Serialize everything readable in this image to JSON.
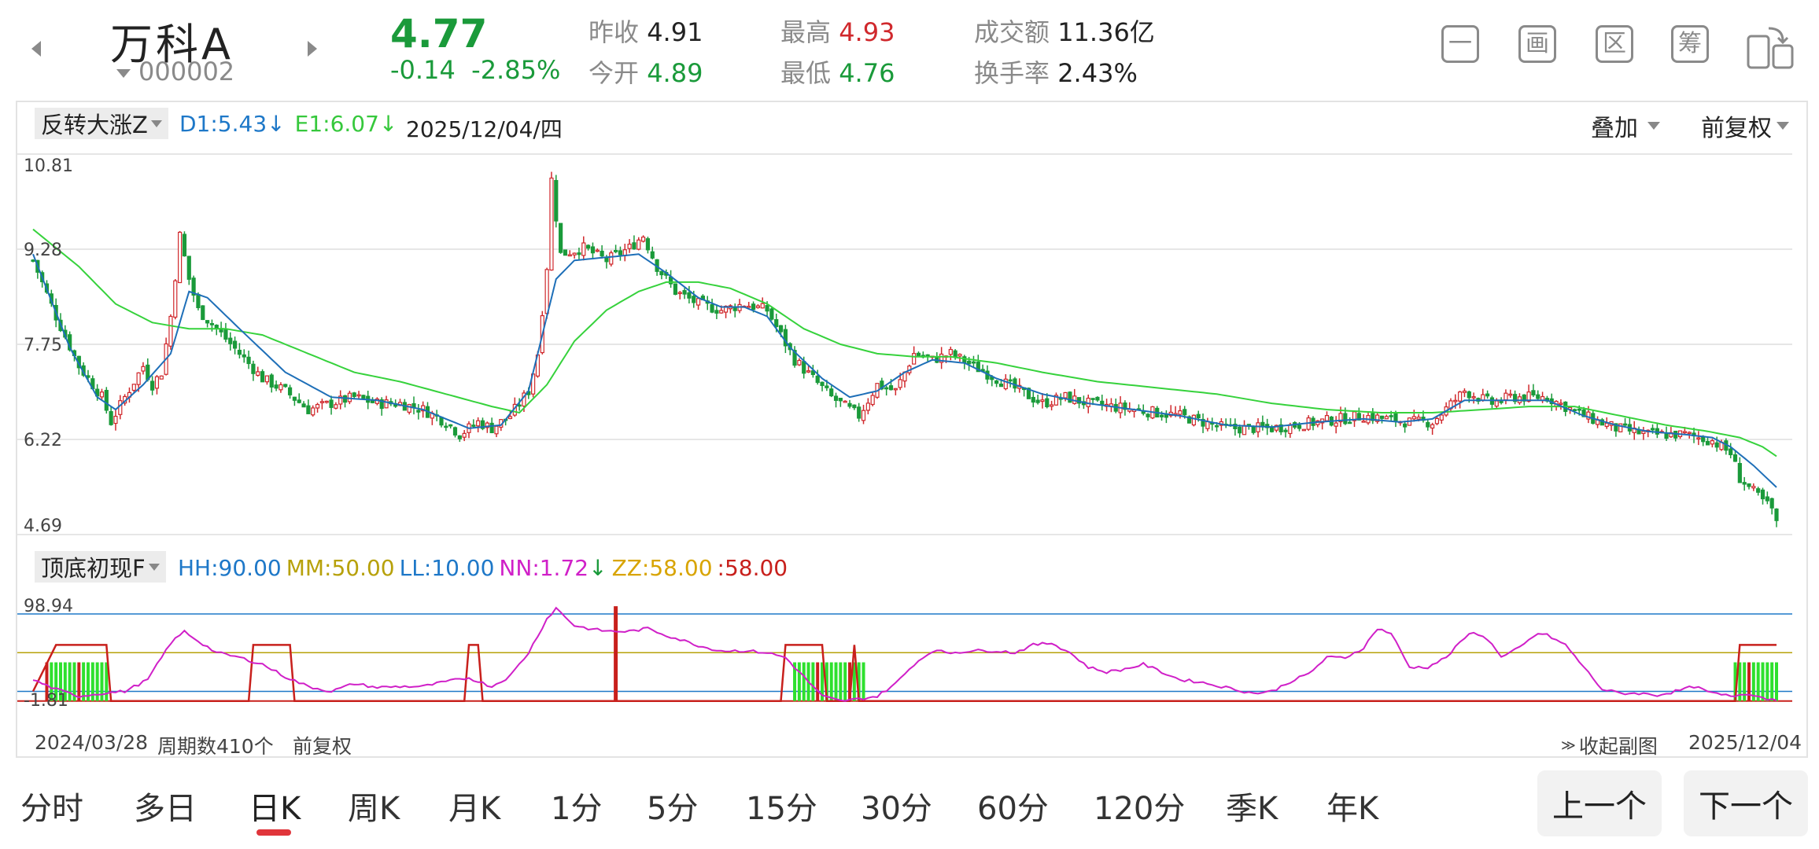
{
  "header": {
    "name": "万科A",
    "code": "000002",
    "price": "4.77",
    "change": "-0.14",
    "change_pct": "-2.85%",
    "stats": [
      {
        "label": "昨收",
        "value": "4.91",
        "color": "dark"
      },
      {
        "label": "今开",
        "value": "4.89",
        "color": "green"
      },
      {
        "label": "最高",
        "value": "4.93",
        "color": "red"
      },
      {
        "label": "最低",
        "value": "4.76",
        "color": "green"
      },
      {
        "label": "成交额",
        "value": "11.36亿",
        "color": "dark"
      },
      {
        "label": "换手率",
        "value": "2.43%",
        "color": "dark"
      }
    ],
    "buttons": [
      {
        "name": "minimize-icon",
        "glyph": "一"
      },
      {
        "name": "draw-icon",
        "glyph": "画"
      },
      {
        "name": "range-icon",
        "glyph": "区"
      },
      {
        "name": "chips-icon",
        "glyph": "筹"
      },
      {
        "name": "rotate-screen-icon",
        "glyph": ""
      }
    ]
  },
  "main_chart": {
    "indicator_name": "反转大涨Z",
    "d1_label": "D1:5.43",
    "e1_label": "E1:6.07",
    "date": "2025/12/04/四",
    "overlay": "叠加",
    "adjust": "前复权",
    "y_ticks": [
      "10.81",
      "9.28",
      "7.75",
      "6.22",
      "4.69"
    ]
  },
  "sub_chart": {
    "indicator_name": "顶底初现F",
    "values": [
      {
        "text": "HH:90.00",
        "color": "#1e78c8"
      },
      {
        "text": "MM:50.00",
        "color": "#b7a10a"
      },
      {
        "text": "LL:10.00",
        "color": "#1e78c8"
      },
      {
        "text": "NN:1.72",
        "color": "#d020c8"
      },
      {
        "text": "ZZ:58.00",
        "color": "#d8a400"
      },
      {
        "text": ":58.00",
        "color": "#c8201c"
      }
    ],
    "y_ticks": [
      "98.94",
      "-1.81"
    ]
  },
  "bottom": {
    "start_date": "2024/03/28",
    "period_count": "周期数410个",
    "adjust": "前复权",
    "collapse": "收起副图",
    "end_date": "2025/12/04"
  },
  "tabs": [
    "分时",
    "多日",
    "日K",
    "周K",
    "月K",
    "1分",
    "5分",
    "15分",
    "30分",
    "60分",
    "120分",
    "季K",
    "年K"
  ],
  "active_tab": "日K",
  "nav_buttons": {
    "prev": "上一个",
    "next": "下一个"
  },
  "colors": {
    "up": "#d0282c",
    "down": "#1a9a3a",
    "ma_fast": "#1e6fb8",
    "ma_slow": "#36d23c",
    "osc": "#d020c8",
    "signal": "#c8201c",
    "volume_green": "#2ee02e"
  },
  "chart_data": [
    {
      "type": "candlestick",
      "title": "",
      "ylim": [
        4.69,
        10.81
      ],
      "x_range": [
        "2024/03/28",
        "2025/12/04"
      ],
      "period_count": 410,
      "series": [
        {
          "name": "D1",
          "last": 5.43
        },
        {
          "name": "E1",
          "last": 6.07
        }
      ],
      "close_path": [
        [
          0,
          9.1
        ],
        [
          5,
          8.2
        ],
        [
          10,
          7.4
        ],
        [
          15,
          6.9
        ],
        [
          17,
          6.5
        ],
        [
          20,
          6.9
        ],
        [
          24,
          7.4
        ],
        [
          26,
          7.1
        ],
        [
          28,
          7.3
        ],
        [
          30,
          8.2
        ],
        [
          32,
          9.5
        ],
        [
          34,
          8.8
        ],
        [
          36,
          8.3
        ],
        [
          40,
          8.0
        ],
        [
          45,
          7.6
        ],
        [
          50,
          7.2
        ],
        [
          55,
          7.0
        ],
        [
          60,
          6.7
        ],
        [
          65,
          6.8
        ],
        [
          70,
          6.9
        ],
        [
          75,
          6.8
        ],
        [
          80,
          6.8
        ],
        [
          85,
          6.7
        ],
        [
          90,
          6.5
        ],
        [
          93,
          6.3
        ],
        [
          97,
          6.5
        ],
        [
          100,
          6.4
        ],
        [
          104,
          6.6
        ],
        [
          108,
          7.0
        ],
        [
          110,
          7.6
        ],
        [
          112,
          9.0
        ],
        [
          113,
          10.4
        ],
        [
          115,
          9.2
        ],
        [
          120,
          9.3
        ],
        [
          125,
          9.1
        ],
        [
          130,
          9.3
        ],
        [
          133,
          9.5
        ],
        [
          136,
          9.0
        ],
        [
          140,
          8.6
        ],
        [
          145,
          8.4
        ],
        [
          150,
          8.3
        ],
        [
          155,
          8.4
        ],
        [
          160,
          8.3
        ],
        [
          163,
          7.9
        ],
        [
          166,
          7.5
        ],
        [
          170,
          7.2
        ],
        [
          174,
          6.9
        ],
        [
          178,
          6.7
        ],
        [
          180,
          6.6
        ],
        [
          184,
          7.1
        ],
        [
          188,
          7.0
        ],
        [
          192,
          7.6
        ],
        [
          196,
          7.5
        ],
        [
          200,
          7.6
        ],
        [
          205,
          7.4
        ],
        [
          210,
          7.2
        ],
        [
          215,
          7.0
        ],
        [
          220,
          6.8
        ],
        [
          225,
          6.9
        ],
        [
          230,
          6.8
        ],
        [
          240,
          6.7
        ],
        [
          250,
          6.6
        ],
        [
          260,
          6.4
        ],
        [
          270,
          6.4
        ],
        [
          280,
          6.5
        ],
        [
          290,
          6.6
        ],
        [
          300,
          6.5
        ],
        [
          305,
          6.5
        ],
        [
          312,
          7.0
        ],
        [
          318,
          6.8
        ],
        [
          322,
          6.9
        ],
        [
          330,
          6.9
        ],
        [
          338,
          6.6
        ],
        [
          345,
          6.4
        ],
        [
          352,
          6.3
        ],
        [
          360,
          6.3
        ],
        [
          366,
          6.2
        ],
        [
          370,
          6.0
        ],
        [
          372,
          5.6
        ],
        [
          376,
          5.3
        ],
        [
          379,
          5.1
        ],
        [
          380,
          4.85
        ]
      ],
      "ma_fast": [
        [
          0,
          9.2
        ],
        [
          8,
          7.7
        ],
        [
          14,
          6.9
        ],
        [
          18,
          6.7
        ],
        [
          24,
          7.1
        ],
        [
          30,
          7.6
        ],
        [
          34,
          8.6
        ],
        [
          38,
          8.5
        ],
        [
          45,
          8.0
        ],
        [
          55,
          7.3
        ],
        [
          65,
          6.9
        ],
        [
          75,
          6.85
        ],
        [
          85,
          6.7
        ],
        [
          95,
          6.4
        ],
        [
          102,
          6.45
        ],
        [
          108,
          7.0
        ],
        [
          111,
          7.9
        ],
        [
          114,
          8.8
        ],
        [
          118,
          9.1
        ],
        [
          125,
          9.15
        ],
        [
          132,
          9.2
        ],
        [
          138,
          8.9
        ],
        [
          145,
          8.5
        ],
        [
          150,
          8.35
        ],
        [
          155,
          8.35
        ],
        [
          160,
          8.2
        ],
        [
          165,
          7.7
        ],
        [
          172,
          7.2
        ],
        [
          178,
          6.9
        ],
        [
          184,
          7.0
        ],
        [
          190,
          7.3
        ],
        [
          196,
          7.5
        ],
        [
          203,
          7.45
        ],
        [
          210,
          7.2
        ],
        [
          220,
          6.95
        ],
        [
          230,
          6.8
        ],
        [
          240,
          6.7
        ],
        [
          250,
          6.6
        ],
        [
          260,
          6.45
        ],
        [
          270,
          6.42
        ],
        [
          280,
          6.5
        ],
        [
          290,
          6.55
        ],
        [
          298,
          6.5
        ],
        [
          305,
          6.55
        ],
        [
          312,
          6.85
        ],
        [
          320,
          6.85
        ],
        [
          330,
          6.85
        ],
        [
          338,
          6.6
        ],
        [
          345,
          6.45
        ],
        [
          352,
          6.35
        ],
        [
          360,
          6.3
        ],
        [
          366,
          6.25
        ],
        [
          370,
          6.1
        ],
        [
          375,
          5.8
        ],
        [
          380,
          5.45
        ]
      ],
      "ma_slow": [
        [
          0,
          9.6
        ],
        [
          10,
          9.0
        ],
        [
          18,
          8.4
        ],
        [
          26,
          8.1
        ],
        [
          34,
          8.0
        ],
        [
          42,
          8.0
        ],
        [
          50,
          7.9
        ],
        [
          60,
          7.6
        ],
        [
          70,
          7.3
        ],
        [
          80,
          7.15
        ],
        [
          90,
          6.95
        ],
        [
          100,
          6.75
        ],
        [
          106,
          6.65
        ],
        [
          112,
          7.1
        ],
        [
          118,
          7.8
        ],
        [
          125,
          8.3
        ],
        [
          132,
          8.6
        ],
        [
          138,
          8.75
        ],
        [
          145,
          8.75
        ],
        [
          152,
          8.65
        ],
        [
          160,
          8.4
        ],
        [
          168,
          8.0
        ],
        [
          176,
          7.75
        ],
        [
          184,
          7.6
        ],
        [
          192,
          7.55
        ],
        [
          200,
          7.55
        ],
        [
          210,
          7.45
        ],
        [
          220,
          7.3
        ],
        [
          232,
          7.15
        ],
        [
          245,
          7.05
        ],
        [
          258,
          6.95
        ],
        [
          270,
          6.8
        ],
        [
          282,
          6.7
        ],
        [
          294,
          6.65
        ],
        [
          305,
          6.65
        ],
        [
          316,
          6.7
        ],
        [
          326,
          6.75
        ],
        [
          336,
          6.75
        ],
        [
          346,
          6.6
        ],
        [
          356,
          6.45
        ],
        [
          365,
          6.35
        ],
        [
          372,
          6.25
        ],
        [
          377,
          6.1
        ],
        [
          380,
          5.95
        ]
      ]
    },
    {
      "type": "line",
      "title": "",
      "ylim": [
        -1.81,
        98.94
      ],
      "reference_lines": [
        90,
        50,
        10
      ],
      "series": [
        {
          "name": "NN",
          "last": 1.72
        },
        {
          "name": "ZZ",
          "last": 58.0
        }
      ],
      "osc_path": [
        [
          0,
          22
        ],
        [
          5,
          12
        ],
        [
          10,
          5
        ],
        [
          15,
          8
        ],
        [
          20,
          10
        ],
        [
          25,
          22
        ],
        [
          30,
          60
        ],
        [
          33,
          72
        ],
        [
          36,
          62
        ],
        [
          40,
          50
        ],
        [
          45,
          45
        ],
        [
          50,
          38
        ],
        [
          55,
          25
        ],
        [
          60,
          15
        ],
        [
          65,
          10
        ],
        [
          70,
          18
        ],
        [
          75,
          14
        ],
        [
          80,
          15
        ],
        [
          85,
          15
        ],
        [
          90,
          20
        ],
        [
          95,
          24
        ],
        [
          100,
          15
        ],
        [
          104,
          26
        ],
        [
          108,
          50
        ],
        [
          112,
          85
        ],
        [
          114,
          96
        ],
        [
          118,
          78
        ],
        [
          122,
          74
        ],
        [
          126,
          72
        ],
        [
          130,
          72
        ],
        [
          134,
          75
        ],
        [
          138,
          68
        ],
        [
          142,
          62
        ],
        [
          146,
          56
        ],
        [
          150,
          52
        ],
        [
          155,
          52
        ],
        [
          160,
          50
        ],
        [
          164,
          45
        ],
        [
          168,
          25
        ],
        [
          172,
          5
        ],
        [
          176,
          0
        ],
        [
          180,
          2
        ],
        [
          184,
          5
        ],
        [
          188,
          18
        ],
        [
          192,
          38
        ],
        [
          196,
          52
        ],
        [
          200,
          50
        ],
        [
          205,
          52
        ],
        [
          210,
          52
        ],
        [
          214,
          50
        ],
        [
          218,
          58
        ],
        [
          222,
          60
        ],
        [
          226,
          50
        ],
        [
          230,
          35
        ],
        [
          234,
          30
        ],
        [
          238,
          33
        ],
        [
          242,
          38
        ],
        [
          246,
          30
        ],
        [
          250,
          22
        ],
        [
          254,
          20
        ],
        [
          258,
          16
        ],
        [
          262,
          12
        ],
        [
          266,
          8
        ],
        [
          270,
          10
        ],
        [
          274,
          20
        ],
        [
          278,
          28
        ],
        [
          282,
          45
        ],
        [
          286,
          45
        ],
        [
          290,
          55
        ],
        [
          293,
          75
        ],
        [
          296,
          70
        ],
        [
          300,
          35
        ],
        [
          304,
          35
        ],
        [
          308,
          45
        ],
        [
          312,
          65
        ],
        [
          314,
          72
        ],
        [
          318,
          60
        ],
        [
          320,
          45
        ],
        [
          324,
          55
        ],
        [
          328,
          70
        ],
        [
          330,
          68
        ],
        [
          334,
          58
        ],
        [
          338,
          35
        ],
        [
          342,
          12
        ],
        [
          346,
          8
        ],
        [
          350,
          8
        ],
        [
          354,
          6
        ],
        [
          358,
          10
        ],
        [
          362,
          15
        ],
        [
          366,
          8
        ],
        [
          370,
          5
        ],
        [
          374,
          8
        ],
        [
          378,
          2
        ],
        [
          380,
          2
        ]
      ],
      "signal_steps": [
        [
          0,
          10
        ],
        [
          5,
          58
        ],
        [
          16,
          58
        ],
        [
          17,
          0
        ],
        [
          47,
          0
        ],
        [
          48,
          58
        ],
        [
          56,
          58
        ],
        [
          57,
          0
        ],
        [
          94,
          0
        ],
        [
          95,
          58
        ],
        [
          97,
          58
        ],
        [
          98,
          0
        ],
        [
          163,
          0
        ],
        [
          164,
          58
        ],
        [
          172,
          58
        ],
        [
          173,
          0
        ],
        [
          178,
          0
        ],
        [
          179,
          58
        ],
        [
          180,
          0
        ],
        [
          371,
          0
        ],
        [
          372,
          58
        ],
        [
          380,
          58
        ]
      ],
      "bars_green_ranges": [
        [
          3,
          16
        ],
        [
          166,
          181
        ],
        [
          371,
          380
        ]
      ],
      "tall_red_bar_at": 127
    }
  ]
}
